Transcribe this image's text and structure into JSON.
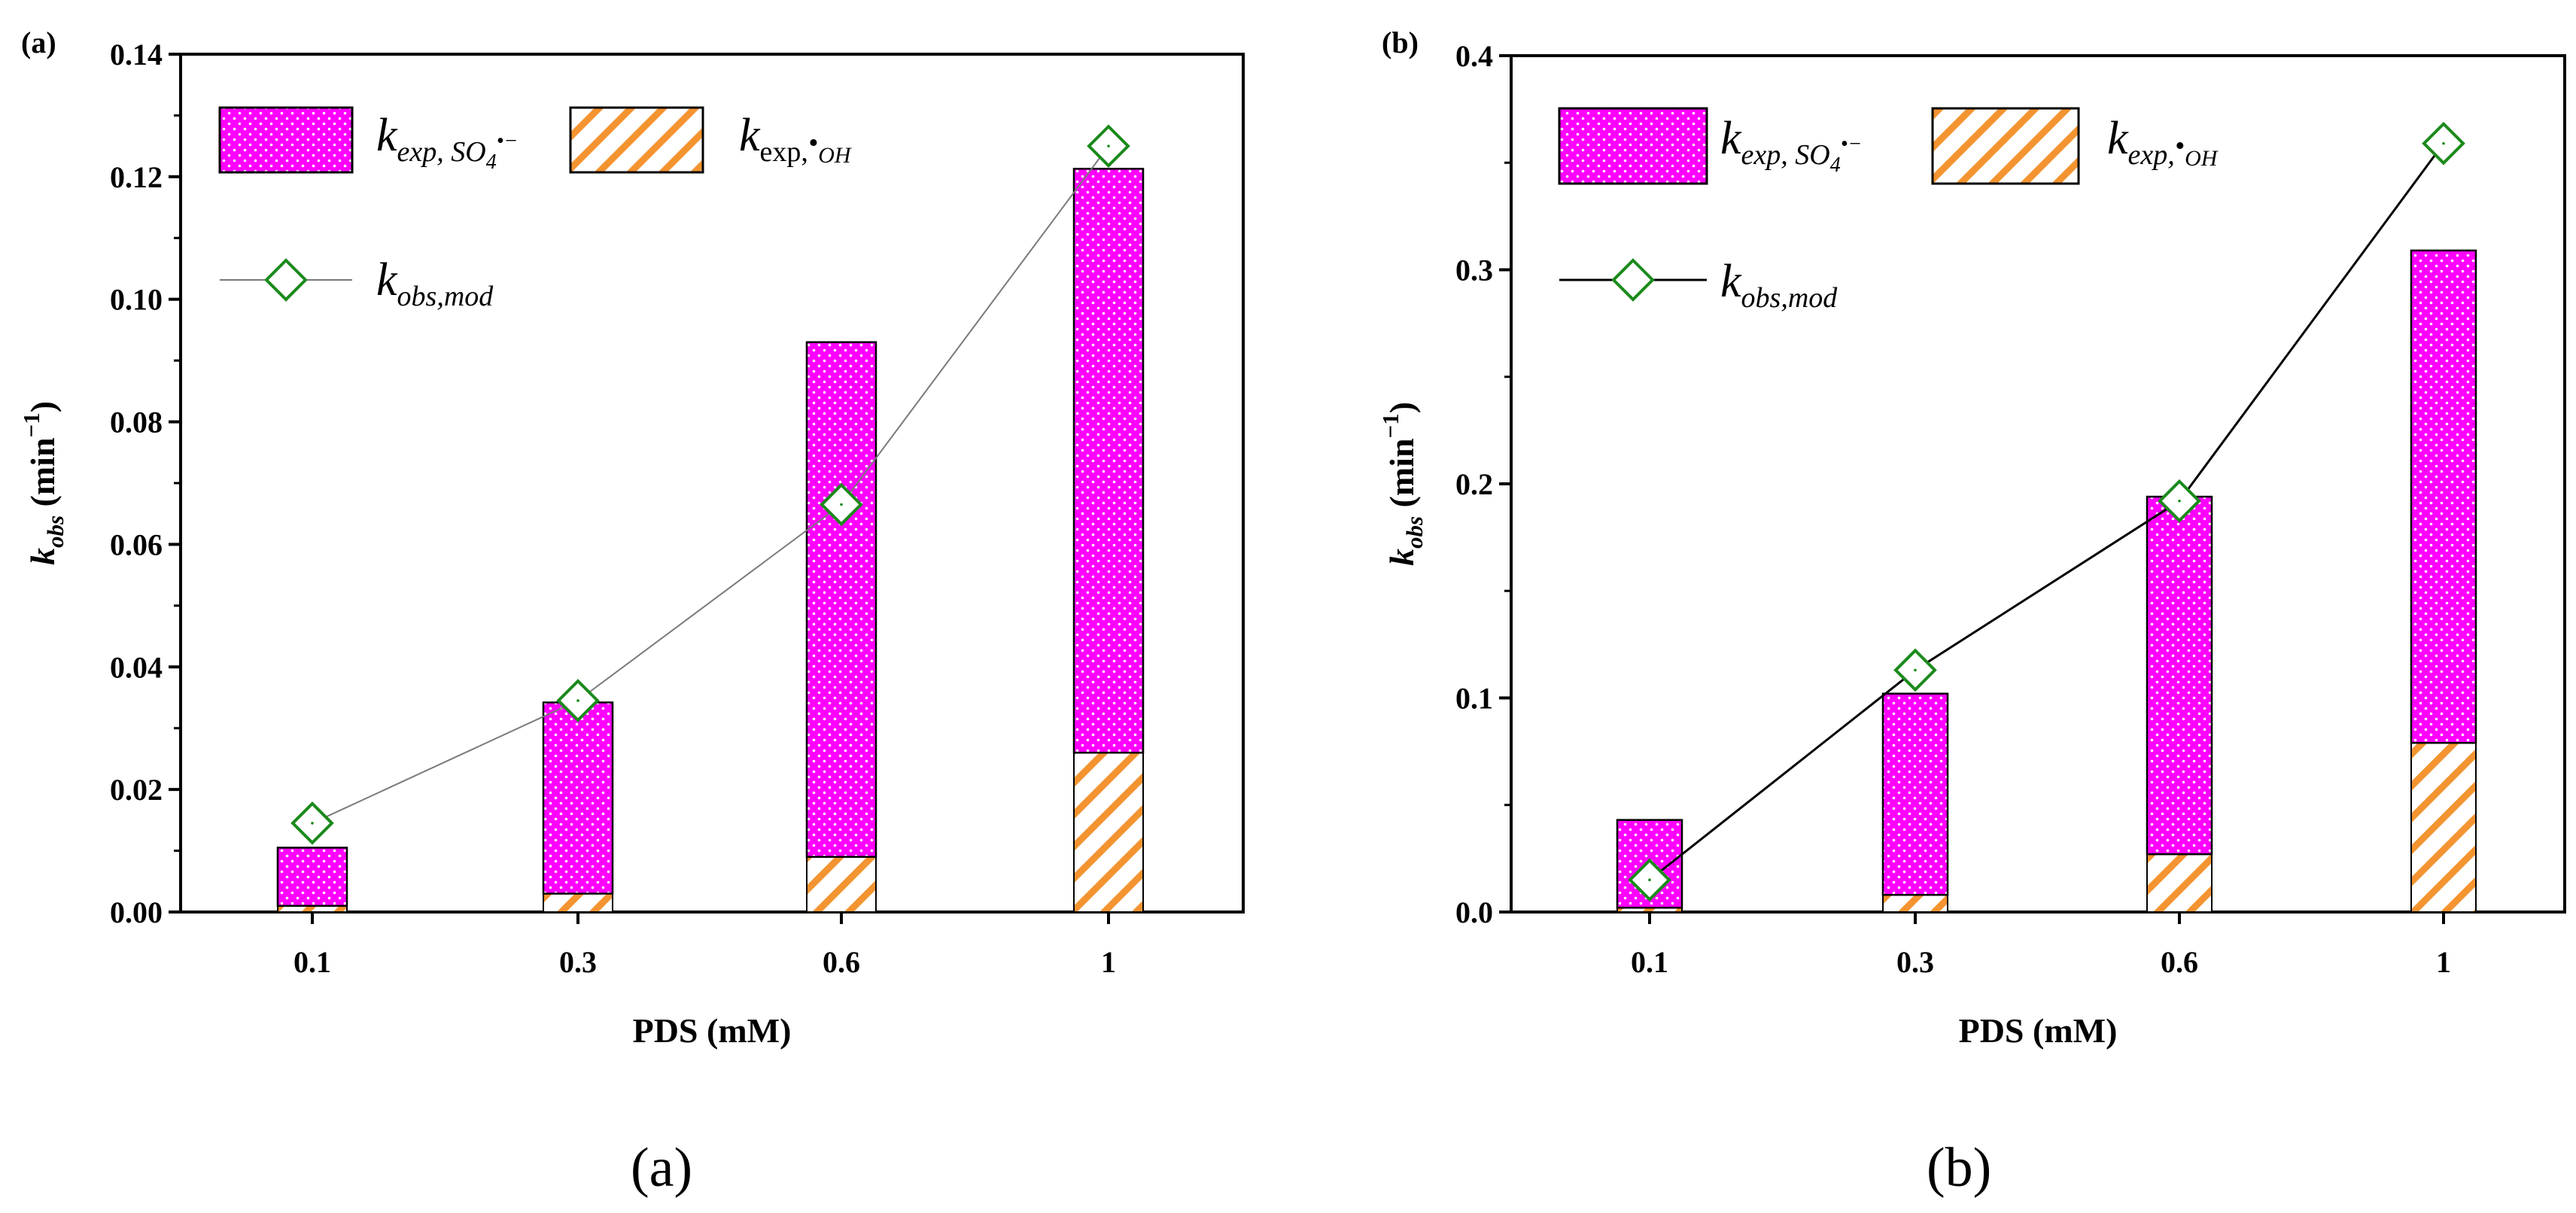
{
  "colors": {
    "so4_fill": "#ff00ff",
    "so4_dot": "#ffffff",
    "oh_stripe": "#f49431",
    "marker": "#1b8a1b",
    "line_a": "#7a7a7a",
    "line_b": "#000000"
  },
  "captions": [
    "(a)",
    "(b)"
  ],
  "legend": {
    "so4_main": "k",
    "so4_sub": "exp, SO",
    "so4_subsub": "4",
    "so4_sup": "•−",
    "oh_main": "k",
    "oh_sub": "exp,",
    "oh_dot": "•",
    "oh_sub2": "OH",
    "mod_main": "k",
    "mod_sub": "obs,mod"
  },
  "chart_data": [
    {
      "type": "bar",
      "panel_label": "(a)",
      "stacked": true,
      "categories": [
        "0.1",
        "0.3",
        "0.6",
        "1"
      ],
      "xlabel": "PDS (mM)",
      "ylabel_main": "k",
      "ylabel_sub": "obs",
      "ylabel_unit": " (min",
      "ylabel_exp": "−1",
      "ylabel_close": ")",
      "ylim": [
        0,
        0.14
      ],
      "yticks": [
        0.0,
        0.02,
        0.04,
        0.06,
        0.08,
        0.1,
        0.12,
        0.14
      ],
      "ytick_labels": [
        "0.00",
        "0.02",
        "0.04",
        "0.06",
        "0.08",
        "0.10",
        "0.12",
        "0.14"
      ],
      "series": [
        {
          "name": "k_exp,OH",
          "values": [
            0.001,
            0.003,
            0.009,
            0.026
          ]
        },
        {
          "name": "k_exp,SO4",
          "values": [
            0.0095,
            0.0312,
            0.084,
            0.0953
          ]
        }
      ],
      "line": {
        "name": "k_obs,mod",
        "values": [
          0.0145,
          0.0345,
          0.0665,
          0.125
        ]
      }
    },
    {
      "type": "bar",
      "panel_label": "(b)",
      "stacked": true,
      "categories": [
        "0.1",
        "0.3",
        "0.6",
        "1"
      ],
      "xlabel": "PDS (mM)",
      "ylabel_main": "k",
      "ylabel_sub": "obs",
      "ylabel_unit": " (min",
      "ylabel_exp": "−1",
      "ylabel_close": ")",
      "ylim": [
        0,
        0.4
      ],
      "yticks": [
        0.0,
        0.1,
        0.2,
        0.3,
        0.4
      ],
      "ytick_labels": [
        "0.0",
        "0.1",
        "0.2",
        "0.3",
        "0.4"
      ],
      "series": [
        {
          "name": "k_exp,OH",
          "values": [
            0.002,
            0.008,
            0.027,
            0.079
          ]
        },
        {
          "name": "k_exp,SO4",
          "values": [
            0.041,
            0.094,
            0.167,
            0.23
          ]
        }
      ],
      "line": {
        "name": "k_obs,mod",
        "values": [
          0.015,
          0.113,
          0.192,
          0.359
        ]
      }
    }
  ]
}
